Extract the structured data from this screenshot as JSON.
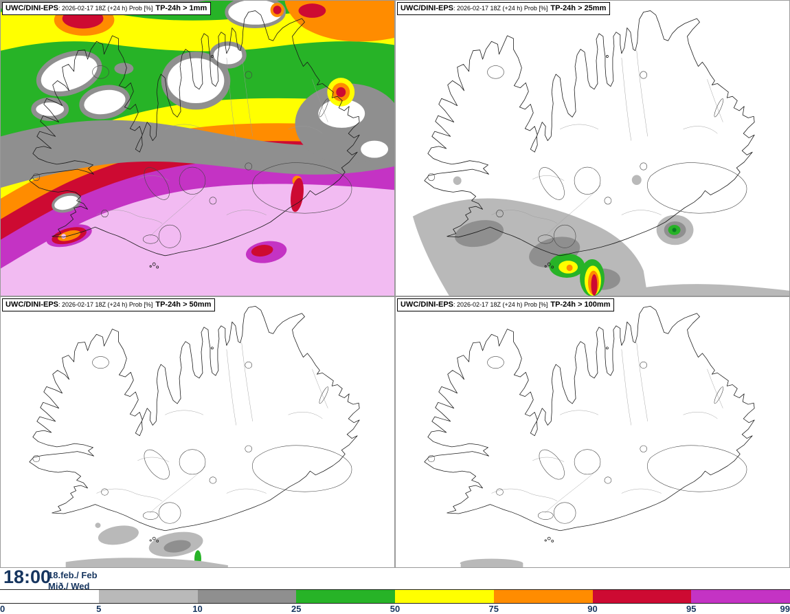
{
  "panels": [
    {
      "model": "UWC/DINI-EPS",
      "meta": ": 2026-02-17 18Z (+24 h) Prob [%]",
      "threshold": "TP-24h > 1mm"
    },
    {
      "model": "UWC/DINI-EPS",
      "meta": ": 2026-02-17 18Z (+24 h) Prob [%]",
      "threshold": "TP-24h > 25mm"
    },
    {
      "model": "UWC/DINI-EPS",
      "meta": ": 2026-02-17 18Z (+24 h) Prob [%]",
      "threshold": "TP-24h > 50mm"
    },
    {
      "model": "UWC/DINI-EPS",
      "meta": ": 2026-02-17 18Z (+24 h) Prob [%]",
      "threshold": "TP-24h > 100mm"
    }
  ],
  "footer": {
    "time": "18:00",
    "date": "18.feb./ Feb",
    "weekday": "Mið./ Wed"
  },
  "scale": {
    "tick_labels": [
      "0",
      "5",
      "10",
      "25",
      "50",
      "75",
      "90",
      "95",
      "99"
    ],
    "segment_colors": [
      "#ffffff",
      "#b9b9b9",
      "#8f8f8f",
      "#27b327",
      "#ffff00",
      "#ff8c00",
      "#cd0a32",
      "#c433c4"
    ],
    "above_99_color": "#f2bbf2",
    "label_color": "#16355f"
  }
}
